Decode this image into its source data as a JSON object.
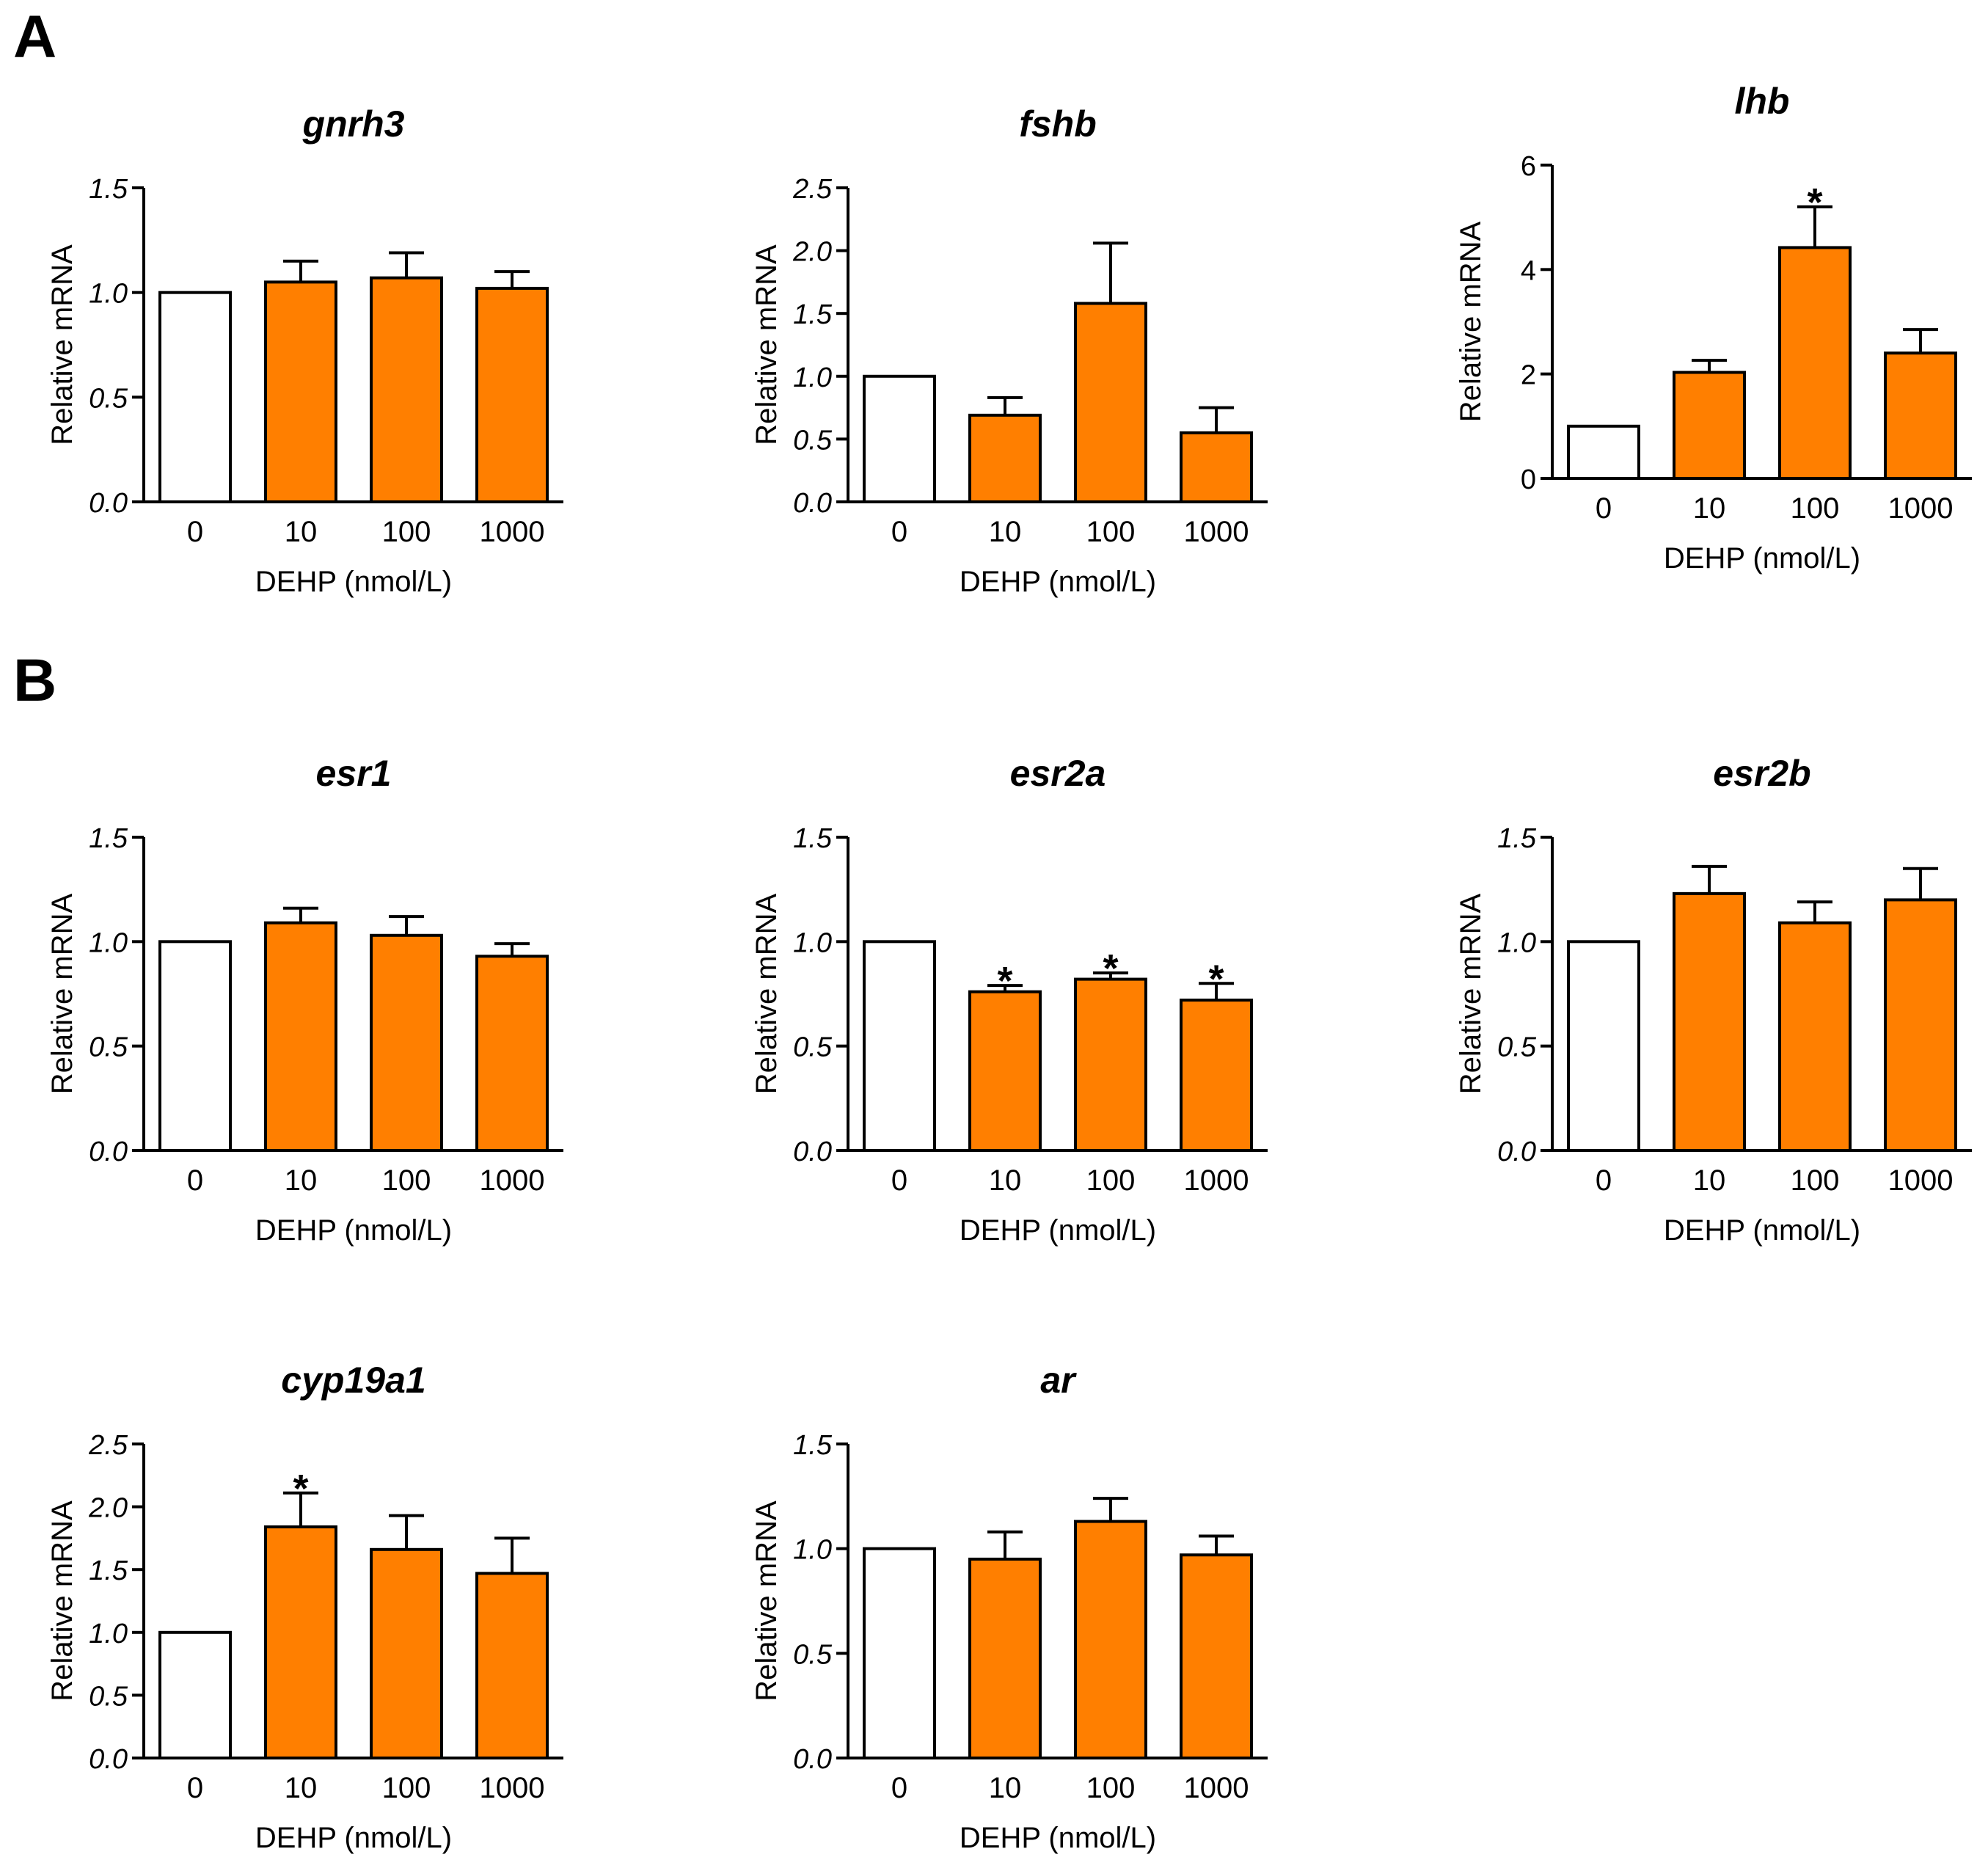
{
  "figure": {
    "panel_labels": [
      "A",
      "B"
    ]
  },
  "chart_data": [
    {
      "type": "bar",
      "title": "gnrh3",
      "xlabel": "DEHP (nmol/L)",
      "ylabel": "Relative mRNA",
      "categories": [
        "0",
        "10",
        "100",
        "1000"
      ],
      "values": [
        1.0,
        1.05,
        1.07,
        1.02
      ],
      "errors": [
        0,
        0.1,
        0.12,
        0.08
      ],
      "significant": [
        false,
        false,
        false,
        false
      ],
      "ylim": [
        0,
        1.5
      ],
      "yticks": [
        "0.0",
        "0.5",
        "1.0",
        "1.5"
      ],
      "colors": [
        "#ffffff",
        "#ff7f00",
        "#ff7f00",
        "#ff7f00"
      ]
    },
    {
      "type": "bar",
      "title": "fshb",
      "xlabel": "DEHP (nmol/L)",
      "ylabel": "Relative mRNA",
      "categories": [
        "0",
        "10",
        "100",
        "1000"
      ],
      "values": [
        1.0,
        0.69,
        1.58,
        0.55
      ],
      "errors": [
        0,
        0.14,
        0.48,
        0.2
      ],
      "significant": [
        false,
        false,
        false,
        false
      ],
      "ylim": [
        0,
        2.5
      ],
      "yticks": [
        "0.0",
        "0.5",
        "1.0",
        "1.5",
        "2.0",
        "2.5"
      ],
      "colors": [
        "#ffffff",
        "#ff7f00",
        "#ff7f00",
        "#ff7f00"
      ]
    },
    {
      "type": "bar",
      "title": "lhb",
      "xlabel": "DEHP (nmol/L)",
      "ylabel": "Relative mRNA",
      "categories": [
        "0",
        "10",
        "100",
        "1000"
      ],
      "values": [
        1.0,
        2.03,
        4.42,
        2.4
      ],
      "errors": [
        0,
        0.23,
        0.78,
        0.45
      ],
      "significant": [
        false,
        false,
        true,
        false
      ],
      "ylim": [
        0,
        6
      ],
      "yticks": [
        "0",
        "2",
        "4",
        "6"
      ],
      "colors": [
        "#ffffff",
        "#ff7f00",
        "#ff7f00",
        "#ff7f00"
      ]
    },
    {
      "type": "bar",
      "title": "esr1",
      "xlabel": "DEHP (nmol/L)",
      "ylabel": "Relative mRNA",
      "categories": [
        "0",
        "10",
        "100",
        "1000"
      ],
      "values": [
        1.0,
        1.09,
        1.03,
        0.93
      ],
      "errors": [
        0,
        0.07,
        0.09,
        0.06
      ],
      "significant": [
        false,
        false,
        false,
        false
      ],
      "ylim": [
        0,
        1.5
      ],
      "yticks": [
        "0.0",
        "0.5",
        "1.0",
        "1.5"
      ],
      "colors": [
        "#ffffff",
        "#ff7f00",
        "#ff7f00",
        "#ff7f00"
      ]
    },
    {
      "type": "bar",
      "title": "esr2a",
      "xlabel": "DEHP (nmol/L)",
      "ylabel": "Relative mRNA",
      "categories": [
        "0",
        "10",
        "100",
        "1000"
      ],
      "values": [
        1.0,
        0.76,
        0.82,
        0.72
      ],
      "errors": [
        0,
        0.03,
        0.03,
        0.08
      ],
      "significant": [
        false,
        true,
        true,
        true
      ],
      "ylim": [
        0,
        1.5
      ],
      "yticks": [
        "0.0",
        "0.5",
        "1.0",
        "1.5"
      ],
      "colors": [
        "#ffffff",
        "#ff7f00",
        "#ff7f00",
        "#ff7f00"
      ]
    },
    {
      "type": "bar",
      "title": "esr2b",
      "xlabel": "DEHP (nmol/L)",
      "ylabel": "Relative mRNA",
      "categories": [
        "0",
        "10",
        "100",
        "1000"
      ],
      "values": [
        1.0,
        1.23,
        1.09,
        1.2
      ],
      "errors": [
        0,
        0.13,
        0.1,
        0.15
      ],
      "significant": [
        false,
        false,
        false,
        false
      ],
      "ylim": [
        0,
        1.5
      ],
      "yticks": [
        "0.0",
        "0.5",
        "1.0",
        "1.5"
      ],
      "colors": [
        "#ffffff",
        "#ff7f00",
        "#ff7f00",
        "#ff7f00"
      ]
    },
    {
      "type": "bar",
      "title": "cyp19a1",
      "xlabel": "DEHP (nmol/L)",
      "ylabel": "Relative mRNA",
      "categories": [
        "0",
        "10",
        "100",
        "1000"
      ],
      "values": [
        1.0,
        1.84,
        1.66,
        1.47
      ],
      "errors": [
        0,
        0.27,
        0.27,
        0.28
      ],
      "significant": [
        false,
        true,
        false,
        false
      ],
      "ylim": [
        0,
        2.5
      ],
      "yticks": [
        "0.0",
        "0.5",
        "1.0",
        "1.5",
        "2.0",
        "2.5"
      ],
      "colors": [
        "#ffffff",
        "#ff7f00",
        "#ff7f00",
        "#ff7f00"
      ]
    },
    {
      "type": "bar",
      "title": "ar",
      "xlabel": "DEHP (nmol/L)",
      "ylabel": "Relative mRNA",
      "categories": [
        "0",
        "10",
        "100",
        "1000"
      ],
      "values": [
        1.0,
        0.95,
        1.13,
        0.97
      ],
      "errors": [
        0,
        0.13,
        0.11,
        0.09
      ],
      "significant": [
        false,
        false,
        false,
        false
      ],
      "ylim": [
        0,
        1.5
      ],
      "yticks": [
        "0.0",
        "0.5",
        "1.0",
        "1.5"
      ],
      "colors": [
        "#ffffff",
        "#ff7f00",
        "#ff7f00",
        "#ff7f00"
      ]
    }
  ]
}
